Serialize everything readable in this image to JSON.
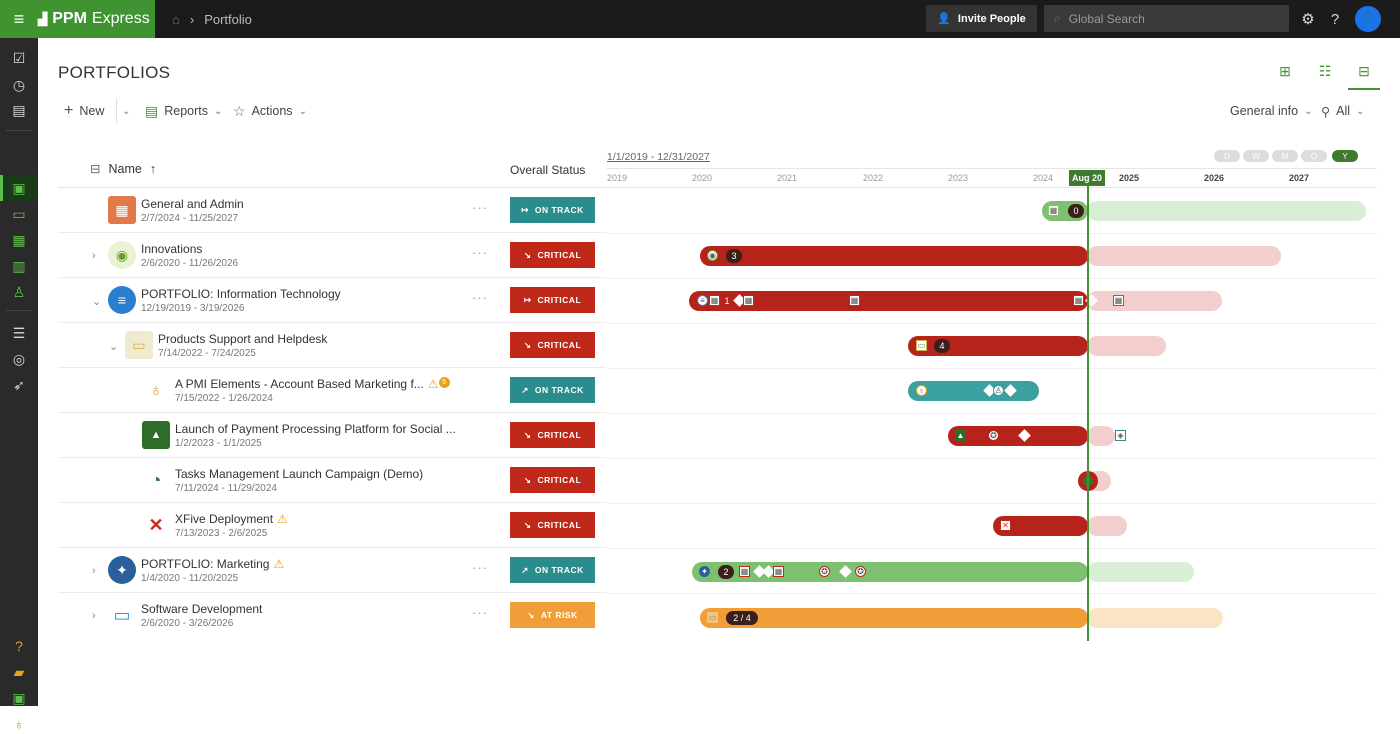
{
  "app": {
    "name_bold": "PPM",
    "name_light": "Express",
    "breadcrumb": "Portfolio"
  },
  "topbar": {
    "invite_label": "Invite People",
    "search_placeholder": "Global Search"
  },
  "page": {
    "title": "PORTFOLIOS"
  },
  "toolbar": {
    "new_label": "New",
    "reports_label": "Reports",
    "actions_label": "Actions",
    "view_label": "General info",
    "filter_label": "All"
  },
  "table": {
    "name_header": "Name",
    "status_header": "Overall Status"
  },
  "timeline": {
    "range_start": "1/1/2019",
    "range_end": "12/31/2027",
    "today_label": "Aug 20",
    "scales": [
      "D",
      "W",
      "M",
      "Q",
      "Y"
    ],
    "years": [
      "2019",
      "2020",
      "2021",
      "2022",
      "2023",
      "2024",
      "2025",
      "2026",
      "2027"
    ]
  },
  "rows": [
    {
      "name": "General and Admin",
      "dates": "2/7/2024 - 11/25/2027",
      "status": "ON TRACK",
      "badge": "0"
    },
    {
      "name": "Innovations",
      "dates": "2/6/2020 - 11/26/2026",
      "status": "CRITICAL",
      "badge": "3"
    },
    {
      "name": "PORTFOLIO: Information Technology",
      "dates": "12/19/2019 - 3/19/2026",
      "status": "CRITICAL",
      "badge": "1"
    },
    {
      "name": "Products Support and Helpdesk",
      "dates": "7/14/2022 - 7/24/2025",
      "status": "CRITICAL",
      "badge": "4"
    },
    {
      "name": "A PMI Elements - Account Based Marketing f...",
      "dates": "7/15/2022 - 1/26/2024",
      "status": "ON TRACK",
      "warn_count": "5"
    },
    {
      "name": "Launch of Payment Processing Platform for Social ...",
      "dates": "1/2/2023 - 1/1/2025",
      "status": "CRITICAL"
    },
    {
      "name": "Tasks Management Launch Campaign (Demo)",
      "dates": "7/11/2024 - 11/29/2024",
      "status": "CRITICAL"
    },
    {
      "name": "XFive Deployment",
      "dates": "7/13/2023 - 2/6/2025",
      "status": "CRITICAL"
    },
    {
      "name": "PORTFOLIO: Marketing",
      "dates": "1/4/2020 - 11/20/2025",
      "status": "ON TRACK",
      "badge": "2"
    },
    {
      "name": "Software Development",
      "dates": "2/6/2020 - 3/26/2026",
      "status": "AT RISK",
      "badge": "2 / 4"
    }
  ],
  "colors": {
    "brand": "#3f9431",
    "critical": "#c0281a",
    "on_track": "#2a8c8c",
    "at_risk": "#f29e38"
  }
}
